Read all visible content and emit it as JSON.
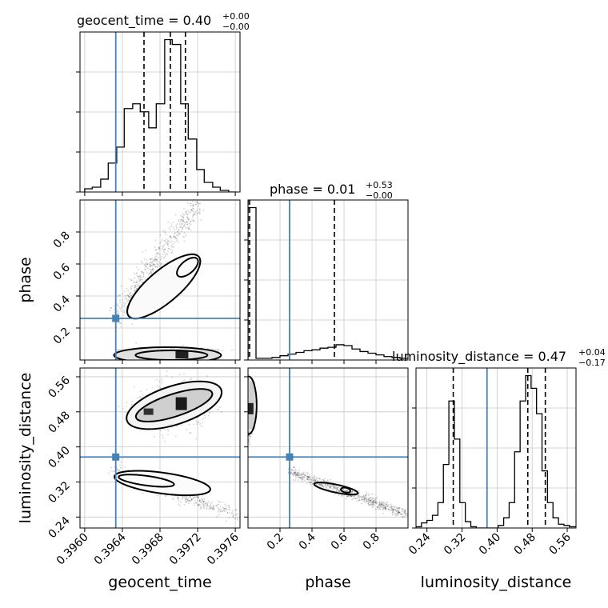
{
  "chart_data": {
    "type": "corner",
    "parameters": [
      "geocent_time",
      "phase",
      "luminosity_distance"
    ],
    "axis_labels": {
      "x": [
        "geocent_time",
        "phase",
        "luminosity_distance"
      ],
      "y": [
        "phase",
        "luminosity_distance"
      ]
    },
    "ranges": {
      "geocent_time": [
        0.39595,
        0.39765
      ],
      "phase": [
        0.0,
        1.0
      ],
      "luminosity_distance": [
        0.215,
        0.58
      ]
    },
    "ticks": {
      "geocent_time": {
        "values": [
          0.396,
          0.3964,
          0.3968,
          0.3972,
          0.3976
        ],
        "labels": [
          "0.3960",
          "0.3964",
          "0.3968",
          "0.3972",
          "0.3976"
        ]
      },
      "phase": {
        "values": [
          0.2,
          0.4,
          0.6,
          0.8
        ],
        "labels": [
          "0.2",
          "0.4",
          "0.6",
          "0.8"
        ]
      },
      "luminosity_distance": {
        "values": [
          0.24,
          0.32,
          0.4,
          0.48,
          0.56
        ],
        "labels": [
          "0.24",
          "0.32",
          "0.40",
          "0.48",
          "0.56"
        ]
      }
    },
    "truths": {
      "geocent_time": 0.39633,
      "phase": 0.26,
      "luminosity_distance": 0.377
    },
    "titles": [
      {
        "param": "geocent_time",
        "text": "geocent_time = 0.40",
        "sup": "+0.00",
        "sub": "−0.00"
      },
      {
        "param": "phase",
        "text": "phase = 0.01",
        "sup": "+0.53",
        "sub": "−0.00"
      },
      {
        "param": "luminosity_distance",
        "text": "luminosity_distance = 0.47",
        "sup": "+0.04",
        "sub": "−0.17"
      }
    ],
    "quantiles": {
      "geocent_time": [
        0.39663,
        0.39691,
        0.39707
      ],
      "phase": [
        0.0,
        0.01,
        0.54
      ],
      "luminosity_distance": [
        0.3,
        0.47,
        0.51
      ]
    },
    "hist_1d": {
      "geocent_time": {
        "edges": [
          0.396,
          0.39608,
          0.39617,
          0.39625,
          0.39634,
          0.39642,
          0.39651,
          0.39659,
          0.39668,
          0.39676,
          0.39685,
          0.39693,
          0.39702,
          0.3971,
          0.39719,
          0.39727,
          0.39736,
          0.39744,
          0.39753,
          0.39761
        ],
        "counts": [
          2,
          3,
          8,
          18,
          28,
          52,
          55,
          50,
          40,
          55,
          95,
          92,
          55,
          33,
          14,
          6,
          3,
          1,
          0
        ]
      },
      "phase": {
        "edges": [
          0.0,
          0.05,
          0.1,
          0.15,
          0.2,
          0.25,
          0.3,
          0.35,
          0.4,
          0.45,
          0.5,
          0.55,
          0.6,
          0.65,
          0.7,
          0.75,
          0.8,
          0.85,
          0.9,
          0.95,
          1.0
        ],
        "counts": [
          180,
          2,
          2,
          3,
          5,
          7,
          9,
          11,
          12,
          14,
          15,
          18,
          17,
          13,
          10,
          8,
          6,
          4,
          3,
          2
        ]
      },
      "luminosity_distance": {
        "edges": [
          0.215,
          0.2275,
          0.24,
          0.2525,
          0.265,
          0.2775,
          0.29,
          0.3025,
          0.315,
          0.3275,
          0.34,
          0.3525,
          0.365,
          0.3775,
          0.39,
          0.4025,
          0.415,
          0.4275,
          0.44,
          0.4525,
          0.465,
          0.4775,
          0.49,
          0.5025,
          0.515,
          0.5275,
          0.54,
          0.5525,
          0.565,
          0.58
        ],
        "counts": [
          1,
          4,
          6,
          10,
          20,
          50,
          100,
          70,
          20,
          5,
          1,
          0,
          0,
          0,
          0,
          2,
          8,
          20,
          60,
          100,
          120,
          110,
          90,
          45,
          20,
          8,
          3,
          2,
          1
        ]
      }
    }
  }
}
